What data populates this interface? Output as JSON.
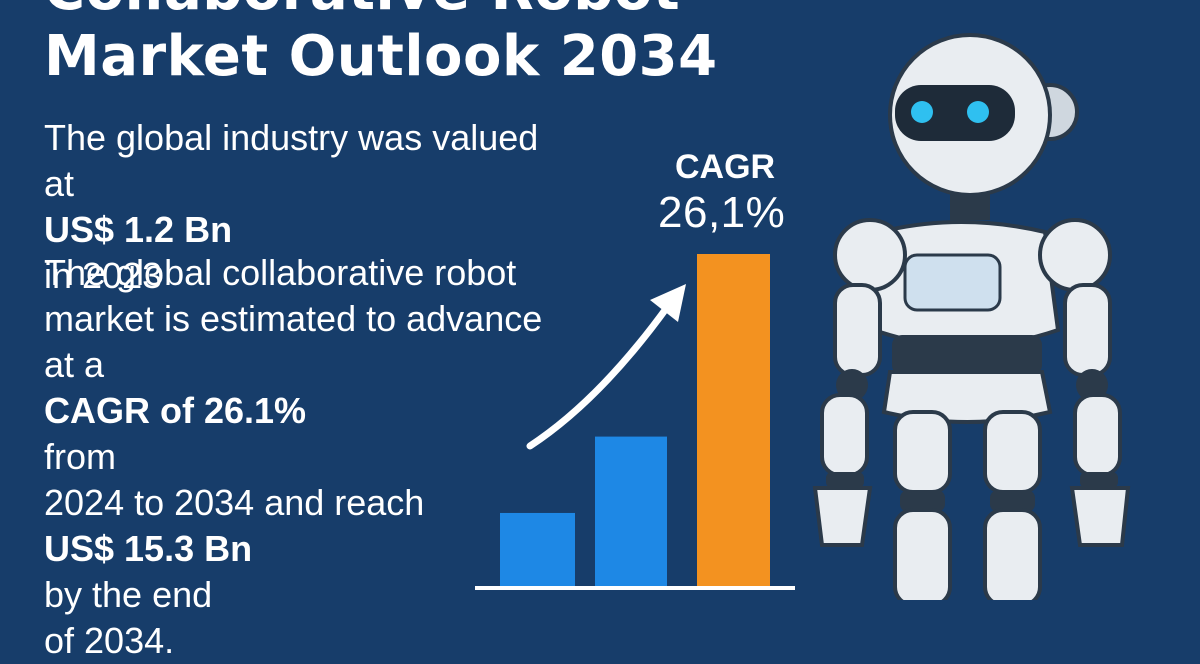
{
  "headline": {
    "line1": "Collaborative Robot",
    "line2": "Market Outlook 2034"
  },
  "valuation": {
    "line1": "The global industry was valued",
    "line2_prefix": "at ",
    "line2_highlight": "US$ 1.2 Bn",
    "line2_suffix": " in 2023"
  },
  "forecast": {
    "line1": "The global collaborative robot",
    "line2": "market is estimated to advance",
    "line3_prefix": "at a ",
    "line3_highlight": "CAGR of 26.1%",
    "line3_suffix": " from",
    "line4": "2024 to 2034 and reach",
    "line5_highlight": "US$ 15.3 Bn",
    "line5_suffix": " by the end",
    "line6": "of 2034."
  },
  "cagr_badge": {
    "label": "CAGR",
    "value": "26,1%"
  },
  "colors": {
    "background": "#173d6a",
    "bar_blue": "#1e88e5",
    "bar_orange": "#f39220",
    "text": "#ffffff"
  },
  "chart_data": {
    "type": "bar",
    "categories": [
      "",
      "",
      ""
    ],
    "values": [
      22,
      45,
      100
    ],
    "title": "",
    "xlabel": "",
    "ylabel": "",
    "ylim": [
      0,
      100
    ],
    "grid": false,
    "legend": "none"
  }
}
